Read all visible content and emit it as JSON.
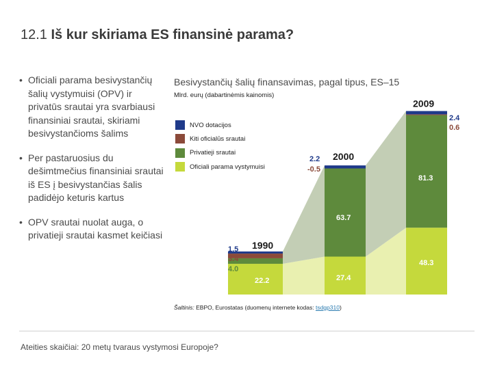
{
  "slide": {
    "title_number": "12.1",
    "title_text": "Iš kur skiriama ES finansinė parama?",
    "bullets": [
      "Oficiali parama besivystančių šalių vystymuisi (OPV) ir privatūs srautai yra svarbiausi finansiniai srautai, skiriami besivystančioms šalims",
      "Per pastaruosius du dešimtmečius finansiniai srautai iš ES į besivystančias šalis padidėjo keturis kartus",
      "OPV srautai nuolat auga, o privatieji srautai kasmet keičiasi"
    ],
    "footer": "Ateities skaičiai: 20 metų tvaraus vystymosi Europoje?"
  },
  "chart_data": {
    "type": "bar",
    "title": "Besivystančių šalių finansavimas, pagal tipus, ES–15",
    "subtitle": "Mlrd. eurų (dabartinėmis kainomis)",
    "categories": [
      "1990",
      "2000",
      "2009"
    ],
    "series": [
      {
        "name": "Oficiali parama vystymuisi",
        "color": "#c5d93c",
        "values": [
          22.2,
          27.4,
          48.3
        ],
        "labels": [
          "22.2",
          "27.4",
          "48.3"
        ]
      },
      {
        "name": "Privatieji srautai",
        "color": "#5e8a3c",
        "values": [
          4.0,
          63.7,
          81.3
        ],
        "labels": [
          "4.0",
          "63.7",
          "81.3"
        ]
      },
      {
        "name": "Kiti oficialūs srautai",
        "color": "#8b4a3a",
        "values": [
          3.4,
          -0.5,
          0.6
        ],
        "labels": [
          "3.4",
          "-0.5",
          "0.6"
        ]
      },
      {
        "name": "NVO dotacijos",
        "color": "#1f3a8a",
        "values": [
          1.5,
          2.2,
          2.4
        ],
        "labels": [
          "1.5",
          "2.2",
          "2.4"
        ]
      }
    ],
    "legend_order": [
      "NVO dotacijos",
      "Kiti oficialūs srautai",
      "Privatieji srautai",
      "Oficiali parama vystymuisi"
    ],
    "legend_placement": "top-left",
    "grid": false,
    "source_prefix": "Šaltinis:",
    "source_text": " EBPO, Eurostatas (duomenų internete kodas: ",
    "source_link": "tsdgp310",
    "source_suffix": ")"
  }
}
